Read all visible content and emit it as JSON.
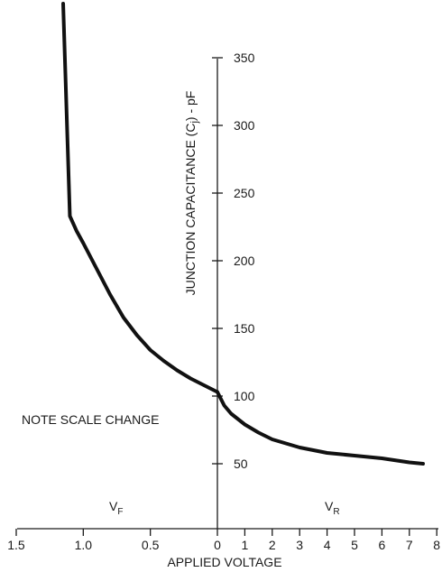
{
  "chart_data": {
    "type": "line",
    "title": "",
    "xlabel": "APPLIED VOLTAGE",
    "ylabel_main": "JUNCTION CAPACITANCE (C",
    "ylabel_sub": "j",
    "ylabel_tail": ") - pF",
    "annotation": "NOTE SCALE CHANGE",
    "region_forward": {
      "main": "V",
      "sub": "F"
    },
    "region_reverse": {
      "main": "V",
      "sub": "R"
    },
    "x_axis_forward": {
      "range": [
        0,
        1.5
      ],
      "ticks": [
        1.5,
        1.0,
        0.5,
        0
      ],
      "tick_labels": [
        "1.5",
        "1.0",
        "0.5",
        "0"
      ],
      "direction": "increasing to the left"
    },
    "x_axis_reverse": {
      "range": [
        0,
        8
      ],
      "ticks": [
        1,
        2,
        3,
        4,
        5,
        6,
        7,
        8
      ],
      "tick_labels": [
        "1",
        "2",
        "3",
        "4",
        "5",
        "6",
        "7",
        "8"
      ]
    },
    "y_axis": {
      "ticks": [
        50,
        100,
        150,
        200,
        250,
        300,
        350
      ],
      "tick_labels": [
        "50",
        "100",
        "150",
        "200",
        "250",
        "300",
        "350"
      ]
    },
    "grid": false,
    "series": [
      {
        "region": "forward",
        "points": [
          {
            "v": 0.0,
            "c": 103
          },
          {
            "v": 0.1,
            "c": 108
          },
          {
            "v": 0.2,
            "c": 113
          },
          {
            "v": 0.3,
            "c": 119
          },
          {
            "v": 0.4,
            "c": 126
          },
          {
            "v": 0.5,
            "c": 134
          },
          {
            "v": 0.6,
            "c": 145
          },
          {
            "v": 0.7,
            "c": 158
          },
          {
            "v": 0.8,
            "c": 175
          },
          {
            "v": 0.9,
            "c": 194
          },
          {
            "v": 1.0,
            "c": 213
          },
          {
            "v": 1.05,
            "c": 222
          },
          {
            "v": 1.1,
            "c": 233
          },
          {
            "v": 1.15,
            "c": 390
          }
        ]
      },
      {
        "region": "reverse",
        "points": [
          {
            "v": 0.0,
            "c": 103
          },
          {
            "v": 0.25,
            "c": 93
          },
          {
            "v": 0.5,
            "c": 87
          },
          {
            "v": 1.0,
            "c": 79
          },
          {
            "v": 1.5,
            "c": 73
          },
          {
            "v": 2.0,
            "c": 68
          },
          {
            "v": 3.0,
            "c": 62
          },
          {
            "v": 4.0,
            "c": 58
          },
          {
            "v": 5.0,
            "c": 56
          },
          {
            "v": 6.0,
            "c": 54
          },
          {
            "v": 7.0,
            "c": 51
          },
          {
            "v": 7.5,
            "c": 50
          }
        ]
      }
    ]
  }
}
